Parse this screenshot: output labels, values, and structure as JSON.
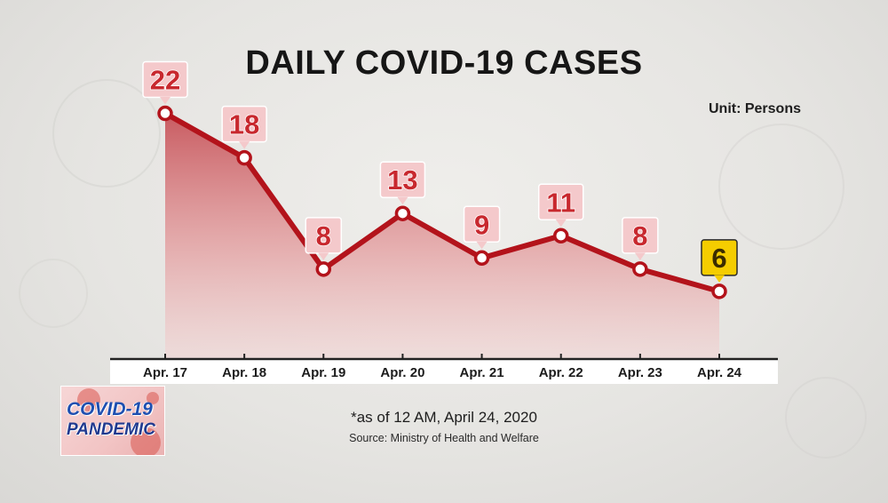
{
  "header": {
    "title": "DAILY COVID-19 CASES",
    "unit": "Unit: Persons"
  },
  "footer": {
    "note": "*as of 12 AM, April 24, 2020",
    "source": "Source: Ministry of Health and Welfare"
  },
  "logo": {
    "line1": "COVID-19",
    "line2": "PANDEMIC"
  },
  "colors": {
    "line": "#b3131b",
    "area_top": "#c7545a",
    "label_bg": "#f4c9cb",
    "label_text": "#c8282e",
    "highlight_bg": "#f5cd00",
    "highlight_text": "#3a2c00",
    "axis_band": "#ffffff"
  },
  "chart_data": {
    "type": "area",
    "categories": [
      "Apr. 17",
      "Apr. 18",
      "Apr. 19",
      "Apr. 20",
      "Apr. 21",
      "Apr. 22",
      "Apr. 23",
      "Apr. 24"
    ],
    "values": [
      22,
      18,
      8,
      13,
      9,
      11,
      8,
      6
    ],
    "highlight_index": 7,
    "ylim": [
      0,
      23
    ],
    "grid": false,
    "data_labels": true
  }
}
